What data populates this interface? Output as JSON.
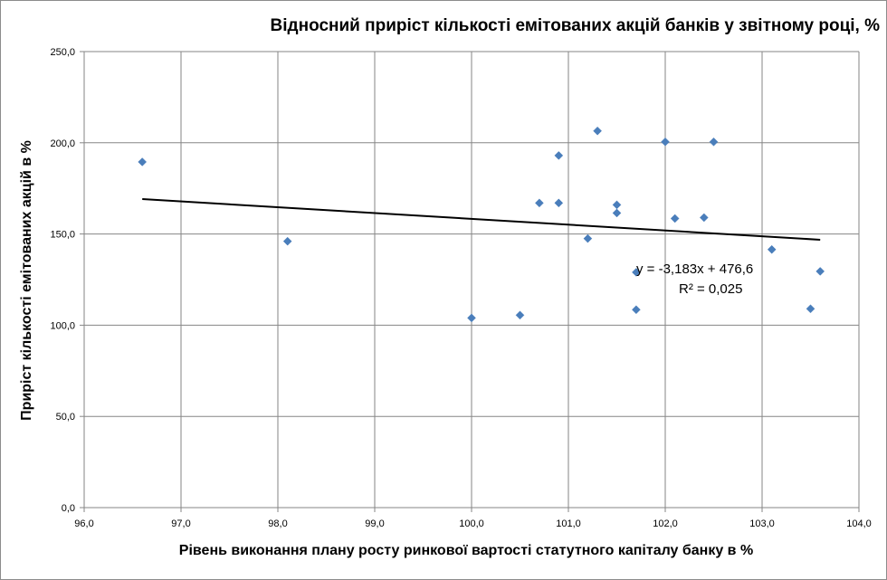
{
  "chart_data": {
    "type": "scatter",
    "title": "Відносний приріст кількості емітованих акцій банків у звітному році, %",
    "xlabel": "Рівень виконання плану росту ринкової вартості статутного капіталу банку в %",
    "ylabel": "Приріст кількості емітованих акцій в %",
    "xlim": [
      96.0,
      104.0
    ],
    "ylim": [
      0.0,
      250.0
    ],
    "x_ticks": [
      "96,0",
      "97,0",
      "98,0",
      "99,0",
      "100,0",
      "101,0",
      "102,0",
      "103,0",
      "104,0"
    ],
    "y_ticks": [
      "0,0",
      "50,0",
      "100,0",
      "150,0",
      "200,0",
      "250,0"
    ],
    "grid": true,
    "marker_color": "#4a7ebb",
    "points": [
      {
        "x": 96.6,
        "y": 189.5
      },
      {
        "x": 98.1,
        "y": 146.0
      },
      {
        "x": 100.0,
        "y": 104.0
      },
      {
        "x": 100.5,
        "y": 105.5
      },
      {
        "x": 100.7,
        "y": 167.0
      },
      {
        "x": 100.9,
        "y": 193.0
      },
      {
        "x": 100.9,
        "y": 167.0
      },
      {
        "x": 101.2,
        "y": 147.5
      },
      {
        "x": 101.3,
        "y": 206.5
      },
      {
        "x": 101.5,
        "y": 166.0
      },
      {
        "x": 101.5,
        "y": 161.5
      },
      {
        "x": 101.7,
        "y": 129.0
      },
      {
        "x": 101.7,
        "y": 108.5
      },
      {
        "x": 102.0,
        "y": 200.5
      },
      {
        "x": 102.1,
        "y": 158.5
      },
      {
        "x": 102.4,
        "y": 159.0
      },
      {
        "x": 102.5,
        "y": 200.5
      },
      {
        "x": 103.1,
        "y": 141.5
      },
      {
        "x": 103.5,
        "y": 109.0
      },
      {
        "x": 103.6,
        "y": 129.5
      }
    ],
    "trendline": {
      "x_start": 96.6,
      "x_end": 103.6,
      "slope": -3.183,
      "intercept": 476.6,
      "color": "#000000",
      "equation": "y = -3,183x + 476,6",
      "r_squared": "R² = 0,025"
    }
  }
}
